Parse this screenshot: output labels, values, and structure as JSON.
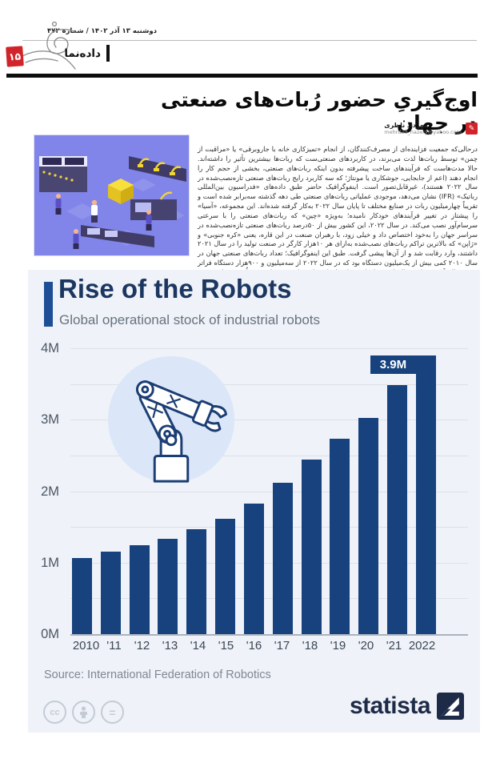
{
  "masthead": {
    "date": "دوشنبه ۱۳ آذر ۱۴۰۲ / شماره ۴۷۲",
    "section": "داده‌نما",
    "page_number": "۱۵"
  },
  "article": {
    "headline": "اوج‌گیریِ حضور رُبات‌های صنعتی در جهان",
    "author": "مهرداد ناظری",
    "email": "mehrdad_nazery@yahoo.com",
    "body": "درحالی‌که جمعیت فزاینده‌ای از مصرف‌کنندگان، از انجام «تمیزکاری خانه با جاروبرقی» یا «مراقبت از چمن» توسط ربات‌ها لذت می‌برند، در کاربردهای صنعتی‌ست که ربات‌ها بیشترین تأثیر را داشته‌اند. حالا مدت‌هاست که فرآیندهای ساخت پیشرفته بدون اینکه ربات‌های صنعتی، بخشی از حجم کار را انجام دهند (اعم از جابجایی، جوشکاری یا مونتاژ؛ که سه کاربرد رایج ربات‌های صنعتی تازه‌نصب‌شده در سال ۲۰۲۲ هستند)، غیرقابل‌تصور است. اینفوگرافیک حاضر طبق داده‌های «فدراسیون بین‌المللی رباتیک» (IFR) نشان می‌دهد، موجودی عملیاتی ربات‌های صنعتی طی دهه گذشته سه‌برابر شده است و تقریباً چهارمیلیون ربات در صنایع مختلف تا پایان سال ۲۰۲۲ به‌کار گرفته شده‌اند. این مجموعه، «آسیا» را پیشتاز در تغییر فرآیندهای خودکار نامیده؛ به‌ویژه «چین» که ربات‌های صنعتی را با سرعتی سرسام‌آور نصب می‌کند. در سال ۲۰۲۲، این کشور بیش از ۵۰درصد ربات‌های صنعتی تازه‌نصب‌شده در سراسر جهان را به‌خود اختصاص داد و خیلی زود، با رهبران صنعت در این قاره، یعنی «کره جنوبی» و «ژاپن» که بالاترین تراکم ربات‌های نصب‌شده به‌ازای هر ۱۰هزار کارگر در صنعت تولید را در سال ۲۰۲۱ داشتند، وارد رقابت شد و از آن‌ها پیشی گرفت. طبق این اینفوگرافیک؛ تعداد ربات‌های صنعتی جهان در سال ۲۰۱۰ کمی بیش از یک‌میلیون دستگاه بود که در سال ۲۰۲۲ از سه‌میلیون و ۹۰۰هزار دستگاه فراتر رفت. جالب‌آنکه در این سال‌ها روند افزایشی این اقدام تداوم داشته و شاهد هیچ اُفتی در این زمینه نبوده‌ایم و هیچ سالی هم این شیب را نامتعادل ندیده و شاهد اوج‌گیری مقطعی و ناگهانی نبوده‌ایم."
  },
  "chart_data": {
    "type": "bar",
    "title": "Rise of the Robots",
    "subtitle": "Global operational stock of industrial robots",
    "categories": [
      "2010",
      "'11",
      "'12",
      "'13",
      "'14",
      "'15",
      "'16",
      "'17",
      "'18",
      "'19",
      "'20",
      "'21",
      "2022"
    ],
    "values_millions": [
      1.06,
      1.15,
      1.24,
      1.33,
      1.47,
      1.61,
      1.83,
      2.12,
      2.44,
      2.73,
      3.02,
      3.48,
      3.9
    ],
    "unit": "M",
    "ylim": [
      0,
      4
    ],
    "gridline_step": 0.5,
    "y_ticks": [
      {
        "label": "4M",
        "v": 4
      },
      {
        "label": "3M",
        "v": 3
      },
      {
        "label": "2M",
        "v": 2
      },
      {
        "label": "1M",
        "v": 1
      },
      {
        "label": "0M",
        "v": 0
      }
    ],
    "data_label": {
      "index": 12,
      "text": "3.9M"
    },
    "legend": null,
    "grid": true,
    "source": "Source: International Federation of Robotics"
  },
  "footer": {
    "brand": "statista",
    "license": {
      "cc": "cc",
      "nd": "="
    }
  },
  "colors": {
    "bar": "#17427e",
    "accent": "#1d4e96",
    "title": "#1b3660",
    "badge_red": "#d1232a",
    "card_bg": "#eff2f8"
  }
}
